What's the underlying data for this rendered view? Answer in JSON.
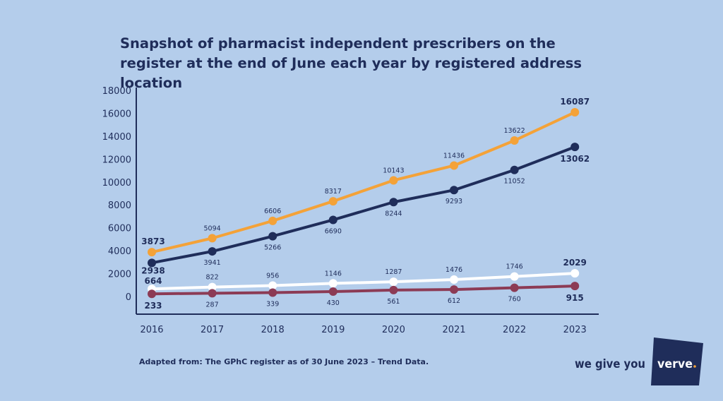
{
  "chart_data": {
    "type": "line",
    "title": "Snapshot of pharmacist independent prescribers on the register at the end of June each year by registered address location",
    "xlabel": "",
    "ylabel": "",
    "categories": [
      "2016",
      "2017",
      "2018",
      "2019",
      "2020",
      "2021",
      "2022",
      "2023"
    ],
    "ylim": [
      0,
      18000
    ],
    "yticks": [
      0,
      2000,
      4000,
      6000,
      8000,
      10000,
      12000,
      14000,
      16000,
      18000
    ],
    "grid": false,
    "legend": "none",
    "series": [
      {
        "color": "#f4a238",
        "label_pos": "above",
        "values": [
          3873,
          5094,
          6606,
          8317,
          10143,
          11436,
          13622,
          16087
        ]
      },
      {
        "color": "#1f2d5a",
        "label_pos": "below",
        "values": [
          2938,
          3941,
          5266,
          6690,
          8244,
          9293,
          11052,
          13062
        ]
      },
      {
        "color": "#ffffff",
        "label_pos": "above",
        "values": [
          664,
          822,
          956,
          1146,
          1287,
          1476,
          1746,
          2029
        ]
      },
      {
        "color": "#8c3b55",
        "label_pos": "below",
        "values": [
          233,
          287,
          339,
          430,
          561,
          612,
          760,
          915
        ]
      }
    ]
  },
  "source": "Adapted from: The GPhC register as of 30 June 2023 – Trend Data.",
  "logo": {
    "text_left": "we give you",
    "text_box": "verve",
    "dot_color": "#f4a238"
  }
}
